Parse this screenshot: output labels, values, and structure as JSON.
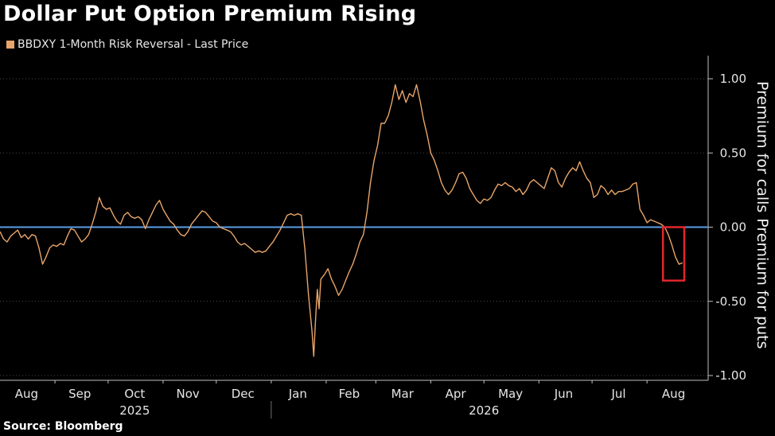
{
  "title": "Dollar Put Option Premium Rising",
  "legend_label": "BBDXY 1-Month Risk Reversal - Last Price",
  "source": "Source: Bloomberg",
  "colors": {
    "background": "#000000",
    "series": "#e8a56a",
    "zero_line": "#5b9ee6",
    "highlight_box": "#e0262b",
    "axis": "#bfbfbf",
    "gridline": "#4a4a4a"
  },
  "chart_data": {
    "type": "line",
    "title": "Dollar Put Option Premium Rising",
    "xlabel": "",
    "ylabel_upper": "Premium for calls",
    "ylabel_lower": "Premium for puts",
    "ylim": [
      -1.0,
      1.0
    ],
    "yticks": [
      1.0,
      0.5,
      0.0,
      -0.5,
      -1.0
    ],
    "ytick_labels": [
      "1.00",
      "0.50",
      "0.00",
      "-0.50",
      "-1.00"
    ],
    "y_axis_side": "right",
    "grid": "horizontal dotted",
    "xlim": [
      "2025-08-01",
      "2026-08-31"
    ],
    "month_ticks": [
      {
        "label": "Aug",
        "date": "2025-08-16"
      },
      {
        "label": "Sep",
        "date": "2025-09-15"
      },
      {
        "label": "Oct",
        "date": "2025-10-16"
      },
      {
        "label": "Nov",
        "date": "2025-11-15"
      },
      {
        "label": "Dec",
        "date": "2025-12-16"
      },
      {
        "label": "Jan",
        "date": "2026-01-16"
      },
      {
        "label": "Feb",
        "date": "2026-02-14"
      },
      {
        "label": "Mar",
        "date": "2026-03-16"
      },
      {
        "label": "Apr",
        "date": "2026-04-15"
      },
      {
        "label": "May",
        "date": "2026-05-16"
      },
      {
        "label": "Jun",
        "date": "2026-06-15"
      },
      {
        "label": "Jul",
        "date": "2026-07-16"
      },
      {
        "label": "Aug",
        "date": "2026-08-16"
      }
    ],
    "year_labels": [
      {
        "label": "2025",
        "date": "2025-10-16"
      },
      {
        "label": "2026",
        "date": "2026-05-01"
      }
    ],
    "year_divider": "2026-01-01",
    "reference_line": {
      "y": 0.0
    },
    "highlight": {
      "x_from": "2026-08-10",
      "x_to": "2026-08-22",
      "y_from": 0.0,
      "y_to": -0.36
    },
    "series": [
      {
        "name": "BBDXY 1-Month Risk Reversal - Last Price",
        "points": [
          [
            "2025-08-01",
            -0.03
          ],
          [
            "2025-08-03",
            -0.08
          ],
          [
            "2025-08-05",
            -0.1
          ],
          [
            "2025-08-07",
            -0.06
          ],
          [
            "2025-08-09",
            -0.04
          ],
          [
            "2025-08-11",
            -0.02
          ],
          [
            "2025-08-13",
            -0.07
          ],
          [
            "2025-08-15",
            -0.05
          ],
          [
            "2025-08-17",
            -0.08
          ],
          [
            "2025-08-19",
            -0.05
          ],
          [
            "2025-08-21",
            -0.06
          ],
          [
            "2025-08-23",
            -0.14
          ],
          [
            "2025-08-25",
            -0.25
          ],
          [
            "2025-08-27",
            -0.2
          ],
          [
            "2025-08-29",
            -0.14
          ],
          [
            "2025-08-31",
            -0.12
          ],
          [
            "2025-09-02",
            -0.13
          ],
          [
            "2025-09-04",
            -0.11
          ],
          [
            "2025-09-06",
            -0.12
          ],
          [
            "2025-09-08",
            -0.06
          ],
          [
            "2025-09-10",
            -0.01
          ],
          [
            "2025-09-12",
            -0.02
          ],
          [
            "2025-09-14",
            -0.06
          ],
          [
            "2025-09-16",
            -0.1
          ],
          [
            "2025-09-18",
            -0.08
          ],
          [
            "2025-09-20",
            -0.05
          ],
          [
            "2025-09-22",
            0.02
          ],
          [
            "2025-09-24",
            0.1
          ],
          [
            "2025-09-26",
            0.2
          ],
          [
            "2025-09-28",
            0.14
          ],
          [
            "2025-09-30",
            0.12
          ],
          [
            "2025-10-02",
            0.13
          ],
          [
            "2025-10-04",
            0.08
          ],
          [
            "2025-10-06",
            0.04
          ],
          [
            "2025-10-08",
            0.02
          ],
          [
            "2025-10-10",
            0.08
          ],
          [
            "2025-10-12",
            0.1
          ],
          [
            "2025-10-14",
            0.07
          ],
          [
            "2025-10-16",
            0.06
          ],
          [
            "2025-10-18",
            0.07
          ],
          [
            "2025-10-20",
            0.05
          ],
          [
            "2025-10-22",
            -0.01
          ],
          [
            "2025-10-24",
            0.05
          ],
          [
            "2025-10-26",
            0.1
          ],
          [
            "2025-10-28",
            0.15
          ],
          [
            "2025-10-30",
            0.18
          ],
          [
            "2025-11-01",
            0.12
          ],
          [
            "2025-11-03",
            0.08
          ],
          [
            "2025-11-05",
            0.04
          ],
          [
            "2025-11-07",
            0.02
          ],
          [
            "2025-11-09",
            -0.02
          ],
          [
            "2025-11-11",
            -0.05
          ],
          [
            "2025-11-13",
            -0.06
          ],
          [
            "2025-11-15",
            -0.03
          ],
          [
            "2025-11-17",
            0.02
          ],
          [
            "2025-11-19",
            0.05
          ],
          [
            "2025-11-21",
            0.08
          ],
          [
            "2025-11-23",
            0.11
          ],
          [
            "2025-11-25",
            0.1
          ],
          [
            "2025-11-27",
            0.07
          ],
          [
            "2025-11-29",
            0.04
          ],
          [
            "2025-12-01",
            0.03
          ],
          [
            "2025-12-03",
            0.0
          ],
          [
            "2025-12-05",
            -0.01
          ],
          [
            "2025-12-07",
            -0.02
          ],
          [
            "2025-12-09",
            -0.03
          ],
          [
            "2025-12-11",
            -0.06
          ],
          [
            "2025-12-13",
            -0.1
          ],
          [
            "2025-12-15",
            -0.12
          ],
          [
            "2025-12-17",
            -0.11
          ],
          [
            "2025-12-19",
            -0.13
          ],
          [
            "2025-12-21",
            -0.15
          ],
          [
            "2025-12-23",
            -0.17
          ],
          [
            "2025-12-25",
            -0.16
          ],
          [
            "2025-12-27",
            -0.17
          ],
          [
            "2025-12-29",
            -0.16
          ],
          [
            "2025-12-31",
            -0.13
          ],
          [
            "2026-01-02",
            -0.1
          ],
          [
            "2026-01-04",
            -0.06
          ],
          [
            "2026-01-06",
            -0.02
          ],
          [
            "2026-01-08",
            0.03
          ],
          [
            "2026-01-10",
            0.08
          ],
          [
            "2026-01-12",
            0.09
          ],
          [
            "2026-01-14",
            0.08
          ],
          [
            "2026-01-16",
            0.09
          ],
          [
            "2026-01-18",
            0.08
          ],
          [
            "2026-01-20",
            -0.15
          ],
          [
            "2026-01-22",
            -0.45
          ],
          [
            "2026-01-24",
            -0.7
          ],
          [
            "2026-01-25",
            -0.87
          ],
          [
            "2026-01-26",
            -0.62
          ],
          [
            "2026-01-27",
            -0.42
          ],
          [
            "2026-01-28",
            -0.55
          ],
          [
            "2026-01-29",
            -0.35
          ],
          [
            "2026-01-31",
            -0.32
          ],
          [
            "2026-02-02",
            -0.28
          ],
          [
            "2026-02-04",
            -0.35
          ],
          [
            "2026-02-06",
            -0.4
          ],
          [
            "2026-02-08",
            -0.46
          ],
          [
            "2026-02-10",
            -0.42
          ],
          [
            "2026-02-12",
            -0.36
          ],
          [
            "2026-02-14",
            -0.3
          ],
          [
            "2026-02-16",
            -0.25
          ],
          [
            "2026-02-18",
            -0.18
          ],
          [
            "2026-02-20",
            -0.1
          ],
          [
            "2026-02-22",
            -0.05
          ],
          [
            "2026-02-24",
            0.1
          ],
          [
            "2026-02-26",
            0.3
          ],
          [
            "2026-02-28",
            0.45
          ],
          [
            "2026-03-02",
            0.55
          ],
          [
            "2026-03-04",
            0.7
          ],
          [
            "2026-03-06",
            0.7
          ],
          [
            "2026-03-08",
            0.75
          ],
          [
            "2026-03-10",
            0.84
          ],
          [
            "2026-03-12",
            0.96
          ],
          [
            "2026-03-14",
            0.86
          ],
          [
            "2026-03-16",
            0.92
          ],
          [
            "2026-03-18",
            0.84
          ],
          [
            "2026-03-20",
            0.9
          ],
          [
            "2026-03-22",
            0.88
          ],
          [
            "2026-03-24",
            0.96
          ],
          [
            "2026-03-26",
            0.85
          ],
          [
            "2026-03-28",
            0.72
          ],
          [
            "2026-03-30",
            0.62
          ],
          [
            "2026-04-01",
            0.5
          ],
          [
            "2026-04-03",
            0.45
          ],
          [
            "2026-04-05",
            0.38
          ],
          [
            "2026-04-07",
            0.3
          ],
          [
            "2026-04-09",
            0.25
          ],
          [
            "2026-04-11",
            0.22
          ],
          [
            "2026-04-13",
            0.25
          ],
          [
            "2026-04-15",
            0.3
          ],
          [
            "2026-04-17",
            0.36
          ],
          [
            "2026-04-19",
            0.37
          ],
          [
            "2026-04-21",
            0.33
          ],
          [
            "2026-04-23",
            0.26
          ],
          [
            "2026-04-25",
            0.22
          ],
          [
            "2026-04-27",
            0.18
          ],
          [
            "2026-04-29",
            0.16
          ],
          [
            "2026-05-01",
            0.19
          ],
          [
            "2026-05-03",
            0.18
          ],
          [
            "2026-05-05",
            0.2
          ],
          [
            "2026-05-07",
            0.25
          ],
          [
            "2026-05-09",
            0.29
          ],
          [
            "2026-05-11",
            0.28
          ],
          [
            "2026-05-13",
            0.3
          ],
          [
            "2026-05-15",
            0.28
          ],
          [
            "2026-05-17",
            0.27
          ],
          [
            "2026-05-19",
            0.24
          ],
          [
            "2026-05-21",
            0.26
          ],
          [
            "2026-05-23",
            0.22
          ],
          [
            "2026-05-25",
            0.25
          ],
          [
            "2026-05-27",
            0.3
          ],
          [
            "2026-05-29",
            0.32
          ],
          [
            "2026-05-31",
            0.3
          ],
          [
            "2026-06-02",
            0.28
          ],
          [
            "2026-06-04",
            0.26
          ],
          [
            "2026-06-06",
            0.33
          ],
          [
            "2026-06-08",
            0.4
          ],
          [
            "2026-06-10",
            0.38
          ],
          [
            "2026-06-12",
            0.3
          ],
          [
            "2026-06-14",
            0.27
          ],
          [
            "2026-06-16",
            0.33
          ],
          [
            "2026-06-18",
            0.37
          ],
          [
            "2026-06-20",
            0.4
          ],
          [
            "2026-06-22",
            0.38
          ],
          [
            "2026-06-24",
            0.44
          ],
          [
            "2026-06-26",
            0.38
          ],
          [
            "2026-06-28",
            0.33
          ],
          [
            "2026-06-30",
            0.3
          ],
          [
            "2026-07-02",
            0.2
          ],
          [
            "2026-07-04",
            0.22
          ],
          [
            "2026-07-06",
            0.28
          ],
          [
            "2026-07-08",
            0.26
          ],
          [
            "2026-07-10",
            0.22
          ],
          [
            "2026-07-12",
            0.25
          ],
          [
            "2026-07-14",
            0.22
          ],
          [
            "2026-07-16",
            0.24
          ],
          [
            "2026-07-18",
            0.24
          ],
          [
            "2026-07-20",
            0.25
          ],
          [
            "2026-07-22",
            0.26
          ],
          [
            "2026-07-24",
            0.29
          ],
          [
            "2026-07-26",
            0.3
          ],
          [
            "2026-07-28",
            0.12
          ],
          [
            "2026-07-30",
            0.08
          ],
          [
            "2026-08-01",
            0.03
          ],
          [
            "2026-08-03",
            0.05
          ],
          [
            "2026-08-05",
            0.04
          ],
          [
            "2026-08-07",
            0.03
          ],
          [
            "2026-08-09",
            0.02
          ],
          [
            "2026-08-11",
            0.0
          ],
          [
            "2026-08-13",
            -0.05
          ],
          [
            "2026-08-15",
            -0.12
          ],
          [
            "2026-08-17",
            -0.2
          ],
          [
            "2026-08-19",
            -0.25
          ],
          [
            "2026-08-21",
            -0.24
          ]
        ]
      }
    ]
  }
}
